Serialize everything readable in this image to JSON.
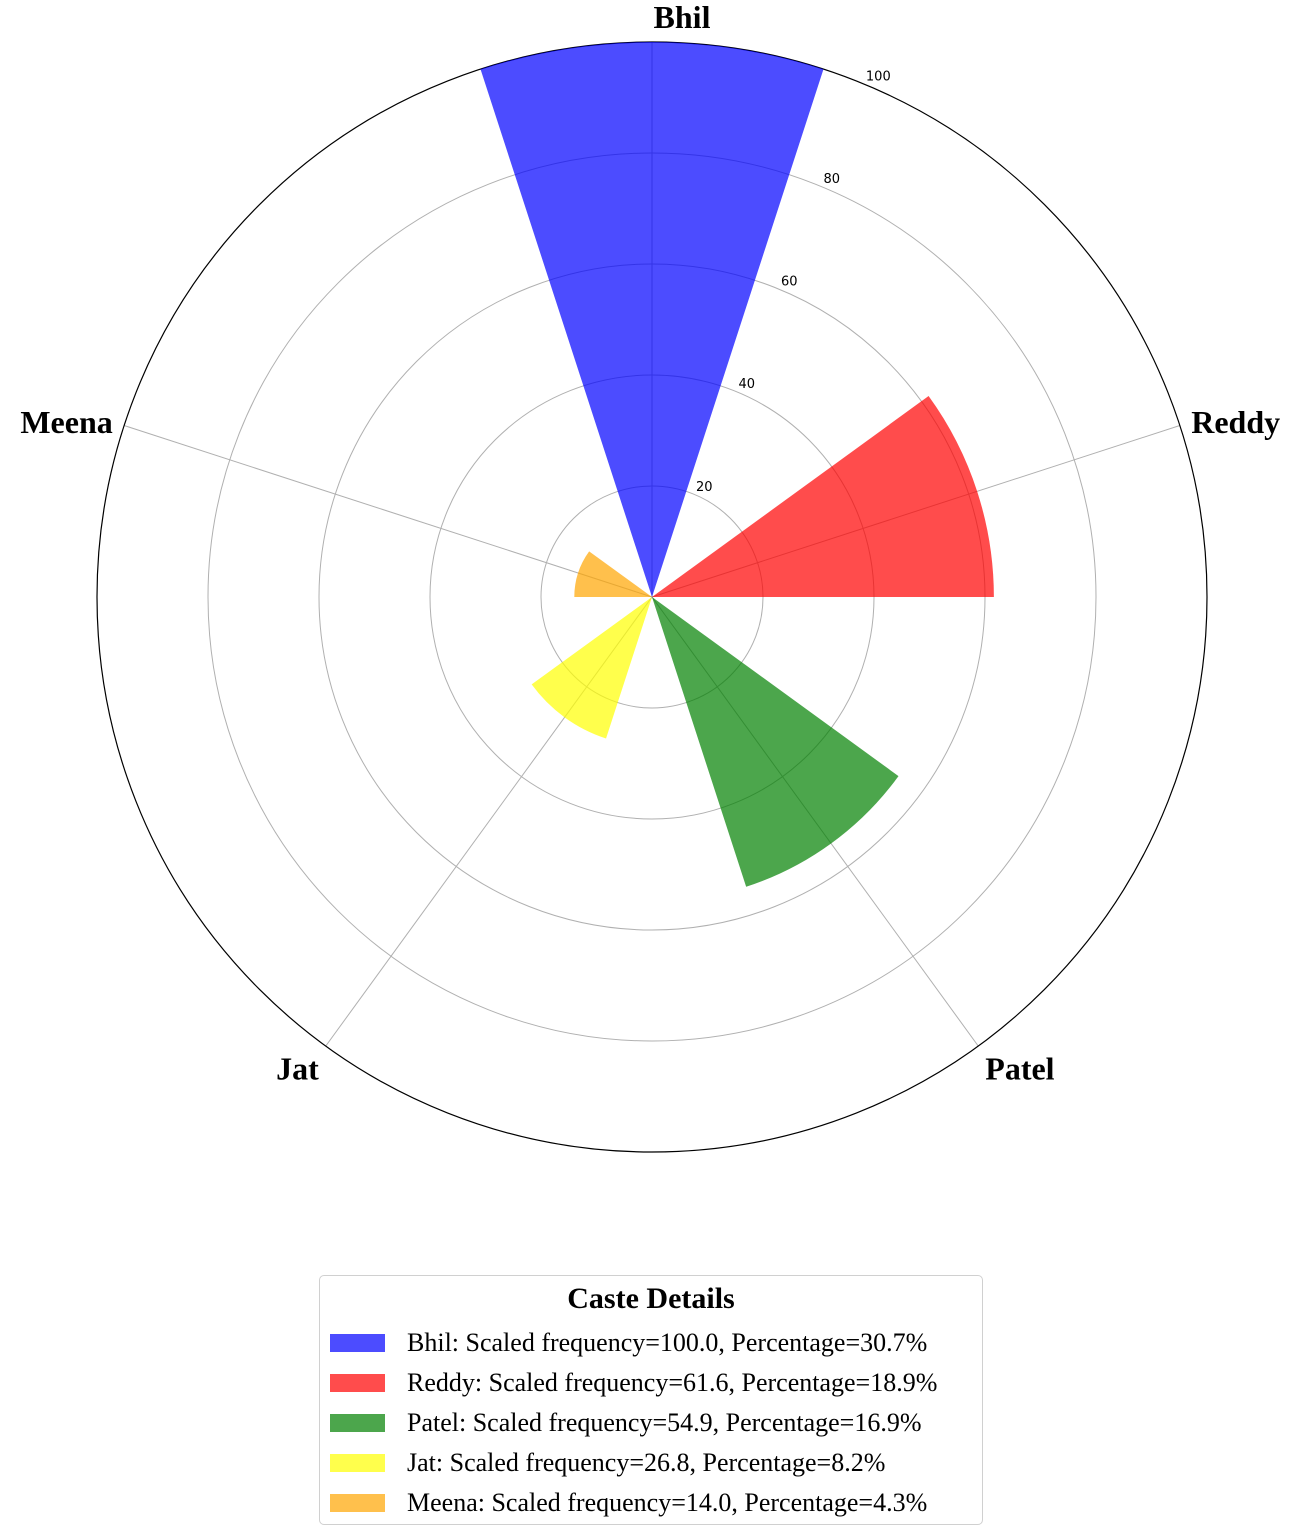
{
  "chart_data": {
    "type": "bar",
    "polar": true,
    "categories": [
      "Bhil",
      "Reddy",
      "Patel",
      "Jat",
      "Meena"
    ],
    "series": [
      {
        "values": [
          100.0,
          61.6,
          54.9,
          26.8,
          14.0
        ],
        "colors": [
          "#0000ff",
          "#ff0000",
          "#008000",
          "#ffff00",
          "#ffa500"
        ]
      }
    ],
    "rlim": [
      0,
      100
    ],
    "rticks": [
      20,
      40,
      60,
      80,
      100
    ],
    "grid": true,
    "start_direction": "top",
    "direction": "clockwise"
  },
  "legend": {
    "title": "Caste Details",
    "placement": "bottom-center",
    "items": [
      {
        "label": "Bhil: Scaled frequency=100.0, Percentage=30.7%",
        "color": "#0000ff"
      },
      {
        "label": "Reddy: Scaled frequency=61.6, Percentage=18.9%",
        "color": "#ff0000"
      },
      {
        "label": "Patel: Scaled frequency=54.9, Percentage=16.9%",
        "color": "#008000"
      },
      {
        "label": "Jat: Scaled frequency=26.8, Percentage=8.2%",
        "color": "#ffff00"
      },
      {
        "label": "Meena: Scaled frequency=14.0, Percentage=4.3%",
        "color": "#ffa500"
      }
    ]
  }
}
